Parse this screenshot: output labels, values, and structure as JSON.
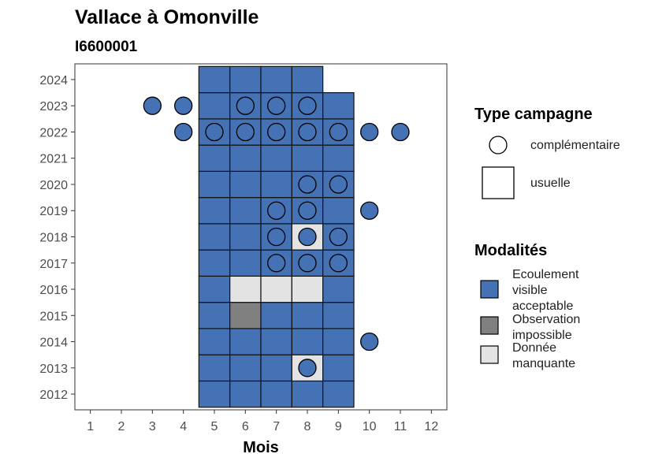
{
  "chart_data": {
    "type": "heatmap",
    "title": "Vallace à Omonville",
    "subtitle": "I6600001",
    "xlabel": "Mois",
    "ylabel": "",
    "x_ticks": [
      1,
      2,
      3,
      4,
      5,
      6,
      7,
      8,
      9,
      10,
      11,
      12
    ],
    "y_ticks": [
      2012,
      2013,
      2014,
      2015,
      2016,
      2017,
      2018,
      2019,
      2020,
      2021,
      2022,
      2023,
      2024
    ],
    "xlim": [
      0.5,
      12.5
    ],
    "ylim": [
      2011.4,
      2024.6
    ],
    "grid": false,
    "colors": {
      "Ecoulement visible acceptable": "#4472b4",
      "Observation impossible": "#808080",
      "Donnée manquante": "#e3e3e3"
    },
    "legend_type": {
      "title": "Type campagne",
      "entries": [
        {
          "label": "complémentaire",
          "shape": "circle"
        },
        {
          "label": "usuelle",
          "shape": "square"
        }
      ],
      "placement": "right"
    },
    "legend_mod": {
      "title": "Modalités",
      "entries": [
        {
          "lines": [
            "Ecoulement",
            "visible",
            "acceptable"
          ],
          "category": "Ecoulement visible acceptable"
        },
        {
          "lines": [
            "Observation",
            "impossible"
          ],
          "category": "Observation impossible"
        },
        {
          "lines": [
            "Donnée",
            "manquante"
          ],
          "category": "Donnée manquante"
        }
      ],
      "placement": "right"
    },
    "usuelle": [
      {
        "year": 2012,
        "months": [
          5,
          6,
          7,
          8,
          9
        ],
        "values": [
          "E",
          "E",
          "E",
          "E",
          "E"
        ]
      },
      {
        "year": 2013,
        "months": [
          5,
          6,
          7,
          8,
          9
        ],
        "values": [
          "E",
          "E",
          "E",
          "M",
          "E"
        ]
      },
      {
        "year": 2014,
        "months": [
          5,
          6,
          7,
          8,
          9
        ],
        "values": [
          "E",
          "E",
          "E",
          "E",
          "E"
        ]
      },
      {
        "year": 2015,
        "months": [
          5,
          6,
          7,
          8,
          9
        ],
        "values": [
          "E",
          "O",
          "E",
          "E",
          "E"
        ]
      },
      {
        "year": 2016,
        "months": [
          5,
          6,
          7,
          8,
          9
        ],
        "values": [
          "E",
          "M",
          "M",
          "M",
          "E"
        ]
      },
      {
        "year": 2017,
        "months": [
          5,
          6,
          7,
          8,
          9
        ],
        "values": [
          "E",
          "E",
          "E",
          "E",
          "E"
        ]
      },
      {
        "year": 2018,
        "months": [
          5,
          6,
          7,
          8,
          9
        ],
        "values": [
          "E",
          "E",
          "E",
          "M",
          "E"
        ]
      },
      {
        "year": 2019,
        "months": [
          5,
          6,
          7,
          8,
          9
        ],
        "values": [
          "E",
          "E",
          "E",
          "E",
          "E"
        ]
      },
      {
        "year": 2020,
        "months": [
          5,
          6,
          7,
          8,
          9
        ],
        "values": [
          "E",
          "E",
          "E",
          "E",
          "E"
        ]
      },
      {
        "year": 2021,
        "months": [
          5,
          6,
          7,
          8,
          9
        ],
        "values": [
          "E",
          "E",
          "E",
          "E",
          "E"
        ]
      },
      {
        "year": 2022,
        "months": [
          5,
          6,
          7,
          8,
          9
        ],
        "values": [
          "E",
          "E",
          "E",
          "E",
          "E"
        ]
      },
      {
        "year": 2023,
        "months": [
          5,
          6,
          7,
          8,
          9
        ],
        "values": [
          "E",
          "E",
          "E",
          "E",
          "E"
        ]
      },
      {
        "year": 2024,
        "months": [
          5,
          6,
          7,
          8
        ],
        "values": [
          "E",
          "E",
          "E",
          "E"
        ]
      }
    ],
    "value_codes": {
      "E": "Ecoulement visible acceptable",
      "O": "Observation impossible",
      "M": "Donnée manquante"
    },
    "complementaire": [
      {
        "year": 2013,
        "months": [
          8
        ]
      },
      {
        "year": 2014,
        "months": [
          10
        ]
      },
      {
        "year": 2017,
        "months": [
          7,
          8,
          9
        ]
      },
      {
        "year": 2018,
        "months": [
          7,
          8,
          9
        ]
      },
      {
        "year": 2019,
        "months": [
          7,
          8,
          10
        ]
      },
      {
        "year": 2020,
        "months": [
          8,
          9
        ]
      },
      {
        "year": 2022,
        "months": [
          4,
          5,
          6,
          7,
          8,
          9,
          10,
          11
        ]
      },
      {
        "year": 2023,
        "months": [
          3,
          4,
          6,
          7,
          8
        ]
      }
    ]
  }
}
